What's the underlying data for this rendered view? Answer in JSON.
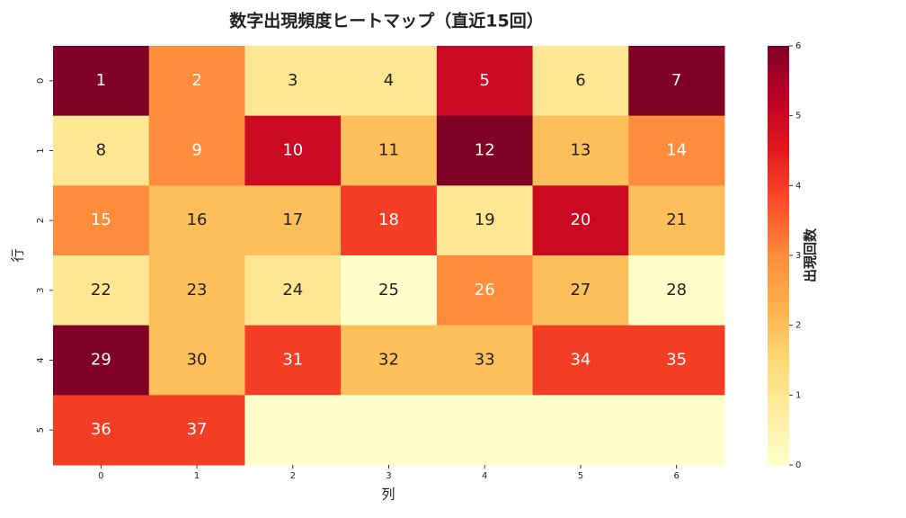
{
  "chart_data": {
    "type": "heatmap",
    "title": "数字出現頻度ヒートマップ（直近15回）",
    "xlabel": "列",
    "ylabel": "行",
    "colorbar_label": "出現回数",
    "x": [
      0,
      1,
      2,
      3,
      4,
      5,
      6
    ],
    "y": [
      0,
      1,
      2,
      3,
      4,
      5
    ],
    "values": [
      [
        6,
        3,
        1,
        1,
        5,
        1,
        6
      ],
      [
        1,
        3,
        5,
        2,
        6,
        2,
        3
      ],
      [
        3,
        2,
        2,
        4,
        1,
        5,
        2
      ],
      [
        1,
        2,
        1,
        0,
        3,
        2,
        0
      ],
      [
        6,
        2,
        4,
        2,
        2,
        4,
        4
      ],
      [
        4,
        4,
        0,
        0,
        0,
        0,
        0
      ]
    ],
    "annotations": [
      [
        1,
        2,
        3,
        4,
        5,
        6,
        7
      ],
      [
        8,
        9,
        10,
        11,
        12,
        13,
        14
      ],
      [
        15,
        16,
        17,
        18,
        19,
        20,
        21
      ],
      [
        22,
        23,
        24,
        25,
        26,
        27,
        28
      ],
      [
        29,
        30,
        31,
        32,
        33,
        34,
        35
      ],
      [
        36,
        37,
        null,
        null,
        null,
        null,
        null
      ]
    ],
    "colormap": "YlOrRd",
    "clim": [
      0,
      6
    ],
    "cticks": [
      0,
      1,
      2,
      3,
      4,
      5,
      6
    ]
  }
}
